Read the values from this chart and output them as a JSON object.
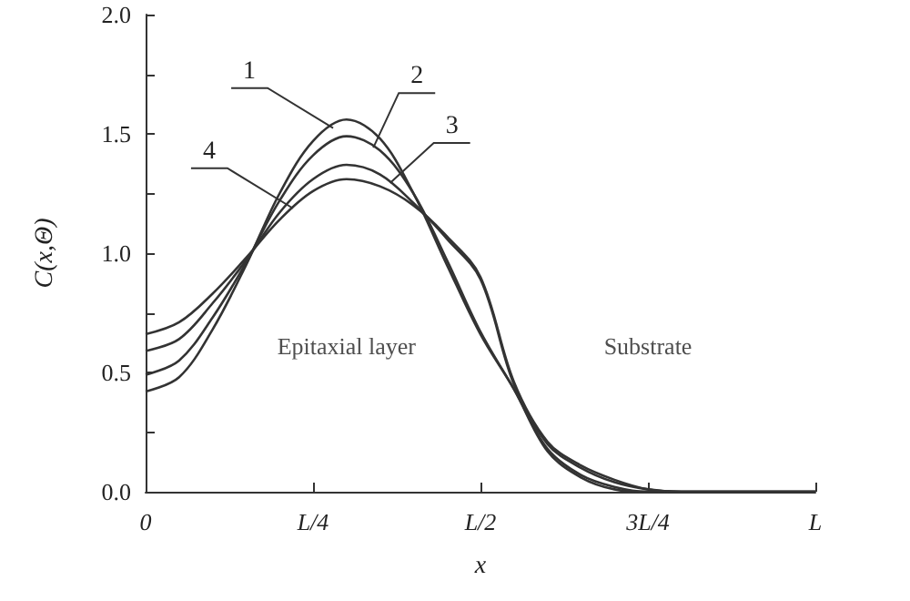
{
  "chart_data": {
    "type": "line",
    "xlabel": "x",
    "ylabel": "C(x,Θ)",
    "categories": [
      "0",
      null,
      null,
      null,
      null,
      "L/4",
      null,
      null,
      null,
      null,
      "L/2",
      null,
      null,
      null,
      null,
      "3L/4",
      null,
      null,
      null,
      null,
      "L"
    ],
    "series": [
      {
        "name": "1",
        "color": "#333333",
        "values": [
          0.42,
          0.48,
          0.68,
          0.95,
          1.25,
          1.47,
          1.56,
          1.48,
          1.25,
          0.95,
          0.66,
          0.43,
          0.17,
          0.06,
          0.01,
          0,
          0,
          0,
          0,
          0,
          0
        ]
      },
      {
        "name": "2",
        "color": "#333333",
        "values": [
          0.49,
          0.55,
          0.73,
          0.96,
          1.22,
          1.41,
          1.49,
          1.43,
          1.25,
          0.97,
          0.67,
          0.43,
          0.18,
          0.07,
          0.02,
          0,
          0,
          0,
          0,
          0,
          0
        ]
      },
      {
        "name": "3",
        "color": "#333333",
        "values": [
          0.59,
          0.64,
          0.79,
          0.97,
          1.17,
          1.31,
          1.37,
          1.33,
          1.21,
          1.06,
          0.89,
          0.45,
          0.2,
          0.1,
          0.04,
          0.01,
          0,
          0,
          0,
          0,
          0
        ]
      },
      {
        "name": "4",
        "color": "#333333",
        "values": [
          0.66,
          0.71,
          0.83,
          0.98,
          1.14,
          1.26,
          1.31,
          1.28,
          1.2,
          1.07,
          0.9,
          0.46,
          0.21,
          0.11,
          0.05,
          0.01,
          0,
          0,
          0,
          0,
          0
        ]
      }
    ],
    "ylim": [
      0,
      2
    ],
    "yticks": [
      {
        "value": 0,
        "label": "0.0"
      },
      {
        "value": 0.25,
        "label": null
      },
      {
        "value": 0.5,
        "label": "0.5"
      },
      {
        "value": 0.75,
        "label": null
      },
      {
        "value": 1,
        "label": "1.0"
      },
      {
        "value": 1.25,
        "label": null
      },
      {
        "value": 1.5,
        "label": "1.5"
      },
      {
        "value": 1.75,
        "label": null
      },
      {
        "value": 2,
        "label": "2.0"
      }
    ],
    "annotations": [
      "Epitaxial layer",
      "Substrate"
    ],
    "legend": false,
    "grid": false,
    "marker": "none",
    "line_style": "solid"
  }
}
